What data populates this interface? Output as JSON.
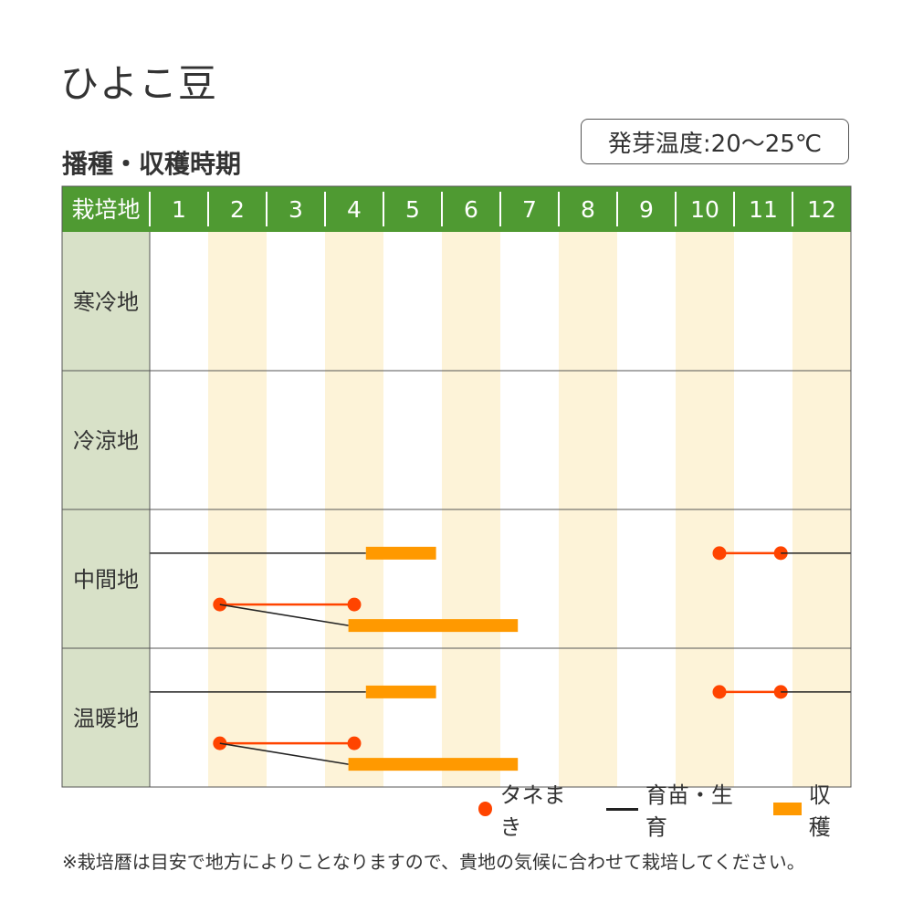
{
  "title": "ひよこ豆",
  "subtitle": "播種・収穫時期",
  "germination": "発芽温度:20〜25℃",
  "note": "※栽培暦は目安で地方によりことなりますので、貴地の気候に合わせて栽培してください。",
  "legend": {
    "sowing": "タネまき",
    "growing": "育苗・生育",
    "harvest": "収穫"
  },
  "colors": {
    "header_green": "#4f9a32",
    "region_bg": "#d8e1c8",
    "stripe": "#fdf3d8",
    "sowing": "#ff4400",
    "growing": "#222222",
    "harvest": "#ff9900",
    "grid": "#555555"
  },
  "chart_data": {
    "type": "table",
    "header_label": "栽培地",
    "months": [
      "1",
      "2",
      "3",
      "4",
      "5",
      "6",
      "7",
      "8",
      "9",
      "10",
      "11",
      "12"
    ],
    "regions": [
      {
        "name": "寒冷地",
        "rows": []
      },
      {
        "name": "冷涼地",
        "rows": []
      },
      {
        "name": "中間地",
        "rows": [
          {
            "segments": [
              {
                "kind": "growing",
                "start": 1.0,
                "end": 4.7
              },
              {
                "kind": "harvest",
                "start": 4.7,
                "end": 5.9
              },
              {
                "kind": "sowing",
                "start": 10.75,
                "end": 11.8
              },
              {
                "kind": "growing",
                "start": 11.8,
                "end": 13.0
              }
            ]
          },
          {
            "segments": [
              {
                "kind": "sowing",
                "start": 2.2,
                "end": 4.5
              },
              {
                "kind": "growing-diagonal",
                "start": 2.2,
                "end": 4.4
              },
              {
                "kind": "harvest",
                "start": 4.4,
                "end": 7.3
              }
            ]
          }
        ]
      },
      {
        "name": "温暖地",
        "rows": [
          {
            "segments": [
              {
                "kind": "growing",
                "start": 1.0,
                "end": 4.7
              },
              {
                "kind": "harvest",
                "start": 4.7,
                "end": 5.9
              },
              {
                "kind": "sowing",
                "start": 10.75,
                "end": 11.8
              },
              {
                "kind": "growing",
                "start": 11.8,
                "end": 13.0
              }
            ]
          },
          {
            "segments": [
              {
                "kind": "sowing",
                "start": 2.2,
                "end": 4.5
              },
              {
                "kind": "growing-diagonal",
                "start": 2.2,
                "end": 4.4
              },
              {
                "kind": "harvest",
                "start": 4.4,
                "end": 7.3
              }
            ]
          }
        ]
      }
    ]
  }
}
